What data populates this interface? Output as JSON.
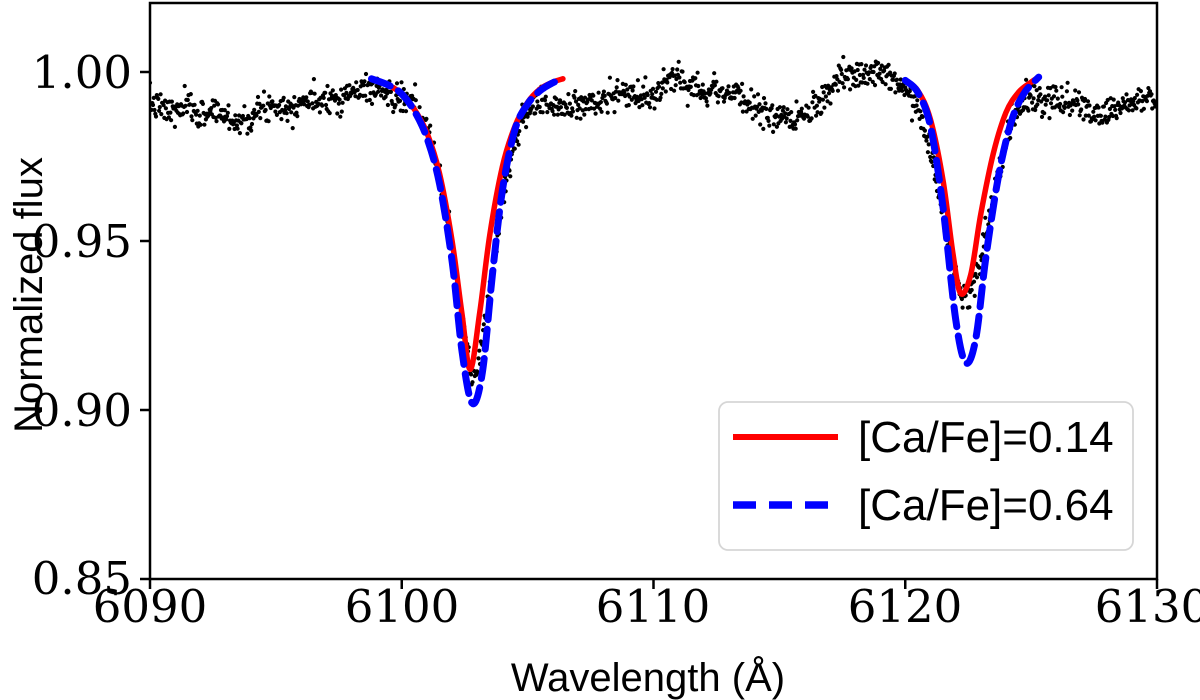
{
  "figure_title": "",
  "axes": {
    "xlabel": "Wavelength (Å)",
    "ylabel": "Normalized flux",
    "x_tick_labels": [
      "6090",
      "6100",
      "6110",
      "6120",
      "6130"
    ],
    "y_tick_labels": [
      "1.00",
      "0.95",
      "0.90",
      "0.85"
    ]
  },
  "legend": {
    "entries": [
      {
        "label": "[Ca/Fe]=0.14",
        "color": "#ff0000",
        "linestyle": "solid"
      },
      {
        "label": "[Ca/Fe]=0.64",
        "color": "#0000ff",
        "linestyle": "dashed"
      }
    ]
  },
  "colors": {
    "observed": "#000000",
    "model_low_ca": "#ff0000",
    "model_high_ca": "#0000ff",
    "frame": "#000000",
    "legend_border": "#d6d6d6",
    "background": "#ffffff"
  },
  "chart_data": {
    "type": "line",
    "title": "",
    "xlabel": "Wavelength (Å)",
    "ylabel": "Normalized flux",
    "xlim": [
      6090,
      6130
    ],
    "ylim": [
      0.8497,
      1.0204
    ],
    "x_ticks": [
      6090,
      6100,
      6110,
      6120,
      6130
    ],
    "y_ticks": [
      1.0,
      0.95,
      0.9,
      0.85
    ],
    "grid": false,
    "legend_position": "lower right",
    "absorption_line_centers": [
      6102.7,
      6122.2
    ],
    "series": [
      {
        "name": "observed spectrum",
        "render": "dots",
        "color": "#000000",
        "noise_sigma": 0.0021,
        "noise_seed": 7,
        "sample_step": 0.03,
        "anchors": [
          [
            6090.0,
            0.991
          ],
          [
            6090.5,
            0.989
          ],
          [
            6091.0,
            0.988
          ],
          [
            6091.5,
            0.99
          ],
          [
            6092.0,
            0.987
          ],
          [
            6092.5,
            0.989
          ],
          [
            6093.0,
            0.987
          ],
          [
            6093.5,
            0.985
          ],
          [
            6094.0,
            0.987
          ],
          [
            6094.5,
            0.989
          ],
          [
            6095.0,
            0.991
          ],
          [
            6095.5,
            0.989
          ],
          [
            6096.0,
            0.992
          ],
          [
            6096.5,
            0.991
          ],
          [
            6097.0,
            0.993
          ],
          [
            6097.5,
            0.992
          ],
          [
            6098.0,
            0.994
          ],
          [
            6098.5,
            0.995
          ],
          [
            6099.0,
            0.995
          ],
          [
            6099.5,
            0.993
          ],
          [
            6100.0,
            0.992
          ],
          [
            6100.5,
            0.99
          ],
          [
            6101.0,
            0.983
          ],
          [
            6101.5,
            0.97
          ],
          [
            6102.0,
            0.948
          ],
          [
            6102.4,
            0.925
          ],
          [
            6102.8,
            0.909
          ],
          [
            6103.1,
            0.916
          ],
          [
            6103.5,
            0.936
          ],
          [
            6104.0,
            0.963
          ],
          [
            6104.5,
            0.98
          ],
          [
            6105.0,
            0.989
          ],
          [
            6105.5,
            0.991
          ],
          [
            6106.0,
            0.99
          ],
          [
            6106.5,
            0.989
          ],
          [
            6107.0,
            0.991
          ],
          [
            6107.5,
            0.99
          ],
          [
            6108.0,
            0.992
          ],
          [
            6108.5,
            0.993
          ],
          [
            6109.0,
            0.994
          ],
          [
            6109.5,
            0.992
          ],
          [
            6110.0,
            0.993
          ],
          [
            6110.5,
            0.996
          ],
          [
            6111.0,
            0.999
          ],
          [
            6111.5,
            0.997
          ],
          [
            6112.0,
            0.994
          ],
          [
            6112.5,
            0.995
          ],
          [
            6113.0,
            0.994
          ],
          [
            6113.5,
            0.992
          ],
          [
            6114.0,
            0.99
          ],
          [
            6114.5,
            0.988
          ],
          [
            6115.0,
            0.986
          ],
          [
            6115.5,
            0.985
          ],
          [
            6116.0,
            0.987
          ],
          [
            6116.5,
            0.99
          ],
          [
            6117.0,
            0.994
          ],
          [
            6117.5,
            0.998
          ],
          [
            6118.0,
            1.0
          ],
          [
            6118.5,
            0.999
          ],
          [
            6119.0,
            1.0
          ],
          [
            6119.5,
            0.998
          ],
          [
            6120.0,
            0.995
          ],
          [
            6120.5,
            0.99
          ],
          [
            6121.0,
            0.978
          ],
          [
            6121.5,
            0.958
          ],
          [
            6122.0,
            0.938
          ],
          [
            6122.3,
            0.933
          ],
          [
            6122.7,
            0.936
          ],
          [
            6123.0,
            0.944
          ],
          [
            6123.5,
            0.963
          ],
          [
            6124.0,
            0.98
          ],
          [
            6124.5,
            0.99
          ],
          [
            6125.0,
            0.992
          ],
          [
            6125.5,
            0.992
          ],
          [
            6126.0,
            0.991
          ],
          [
            6126.5,
            0.992
          ],
          [
            6127.0,
            0.99
          ],
          [
            6127.5,
            0.988
          ],
          [
            6128.0,
            0.988
          ],
          [
            6128.5,
            0.99
          ],
          [
            6129.0,
            0.991
          ],
          [
            6129.5,
            0.992
          ],
          [
            6130.0,
            0.991
          ]
        ]
      },
      {
        "name": "[Ca/Fe]=0.14",
        "render": "smooth-line",
        "color": "#ff0000",
        "linestyle": "solid",
        "linewidth": 5.5,
        "segments": [
          [
            [
              6098.8,
              0.998
            ],
            [
              6099.5,
              0.996
            ],
            [
              6100.0,
              0.9935
            ],
            [
              6100.5,
              0.989
            ],
            [
              6101.0,
              0.982
            ],
            [
              6101.5,
              0.97
            ],
            [
              6102.0,
              0.95
            ],
            [
              6102.4,
              0.928
            ],
            [
              6102.72,
              0.912
            ],
            [
              6103.1,
              0.929
            ],
            [
              6103.5,
              0.952
            ],
            [
              6104.0,
              0.972
            ],
            [
              6104.5,
              0.984
            ],
            [
              6105.0,
              0.991
            ],
            [
              6105.5,
              0.995
            ],
            [
              6106.0,
              0.997
            ],
            [
              6106.4,
              0.998
            ]
          ],
          [
            [
              6120.0,
              0.9975
            ],
            [
              6120.5,
              0.9945
            ],
            [
              6121.0,
              0.986
            ],
            [
              6121.5,
              0.968
            ],
            [
              6121.9,
              0.946
            ],
            [
              6122.2,
              0.9345
            ],
            [
              6122.6,
              0.94
            ],
            [
              6123.0,
              0.958
            ],
            [
              6123.5,
              0.976
            ],
            [
              6124.0,
              0.988
            ],
            [
              6124.5,
              0.994
            ],
            [
              6125.0,
              0.997
            ],
            [
              6125.3,
              0.9985
            ]
          ]
        ]
      },
      {
        "name": "[Ca/Fe]=0.64",
        "render": "smooth-line",
        "color": "#0000ff",
        "linestyle": "dashed",
        "linewidth": 7,
        "dash": [
          20,
          9.5
        ],
        "segments": [
          [
            [
              6098.8,
              0.998
            ],
            [
              6099.5,
              0.996
            ],
            [
              6100.0,
              0.9935
            ],
            [
              6100.5,
              0.9885
            ],
            [
              6101.0,
              0.9805
            ],
            [
              6101.5,
              0.967
            ],
            [
              6102.0,
              0.944
            ],
            [
              6102.4,
              0.917
            ],
            [
              6102.8,
              0.902
            ],
            [
              6103.2,
              0.911
            ],
            [
              6103.6,
              0.94
            ],
            [
              6104.0,
              0.965
            ],
            [
              6104.5,
              0.983
            ],
            [
              6105.0,
              0.9905
            ],
            [
              6105.5,
              0.9945
            ],
            [
              6106.0,
              0.9968
            ],
            [
              6106.4,
              0.998
            ]
          ],
          [
            [
              6120.0,
              0.9975
            ],
            [
              6120.5,
              0.994
            ],
            [
              6121.0,
              0.984
            ],
            [
              6121.5,
              0.96
            ],
            [
              6122.0,
              0.927
            ],
            [
              6122.4,
              0.914
            ],
            [
              6122.8,
              0.921
            ],
            [
              6123.2,
              0.945
            ],
            [
              6123.7,
              0.969
            ],
            [
              6124.2,
              0.985
            ],
            [
              6124.7,
              0.9935
            ],
            [
              6125.3,
              0.9985
            ]
          ]
        ]
      }
    ]
  }
}
